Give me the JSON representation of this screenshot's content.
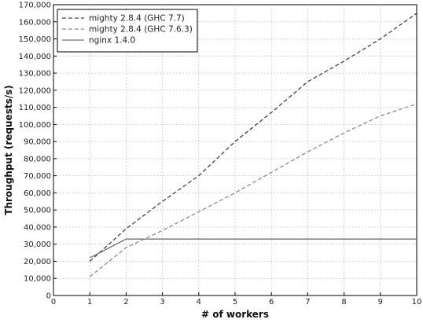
{
  "chart_data": {
    "type": "line",
    "xlabel": "# of workers",
    "ylabel": "Throughput (requests/s)",
    "xlim": [
      0,
      10
    ],
    "ylim": [
      0,
      170000
    ],
    "xticks": [
      0,
      1,
      2,
      3,
      4,
      5,
      6,
      7,
      8,
      9,
      10
    ],
    "yticks": [
      0,
      10000,
      20000,
      30000,
      40000,
      50000,
      60000,
      70000,
      80000,
      90000,
      100000,
      110000,
      120000,
      130000,
      140000,
      150000,
      160000,
      170000
    ],
    "xtick_labels": [
      "0",
      "1",
      "2",
      "3",
      "4",
      "5",
      "6",
      "7",
      "8",
      "9",
      "10"
    ],
    "ytick_labels": [
      "0",
      "10,000",
      "20,000",
      "30,000",
      "40,000",
      "50,000",
      "60,000",
      "70,000",
      "80,000",
      "90,000",
      "100,000",
      "110,000",
      "120,000",
      "130,000",
      "140,000",
      "150,000",
      "160,000",
      "170,000"
    ],
    "grid": true,
    "legend_position": "top-left",
    "series": [
      {
        "name": "mighty 2.8.4 (GHC 7.7)",
        "color": "#404040",
        "style": "dashed",
        "x": [
          1,
          2,
          3,
          4,
          5,
          6,
          7,
          8,
          9,
          10
        ],
        "y": [
          20000,
          39000,
          55000,
          70000,
          90000,
          107000,
          125000,
          137000,
          150000,
          165000
        ]
      },
      {
        "name": "mighty 2.8.4 (GHC 7.6.3)",
        "color": "#8c8c8c",
        "style": "dashed",
        "x": [
          1,
          2,
          3,
          4,
          5,
          6,
          7,
          8,
          9,
          10
        ],
        "y": [
          11000,
          28000,
          38000,
          49000,
          60000,
          72000,
          84000,
          95000,
          105000,
          112000
        ]
      },
      {
        "name": "nginx 1.4.0",
        "color": "#707070",
        "style": "solid",
        "x": [
          1,
          2,
          3,
          4,
          5,
          6,
          7,
          8,
          9,
          10
        ],
        "y": [
          22000,
          33000,
          33000,
          33000,
          33000,
          33000,
          33000,
          33000,
          33000,
          33000
        ]
      }
    ]
  }
}
